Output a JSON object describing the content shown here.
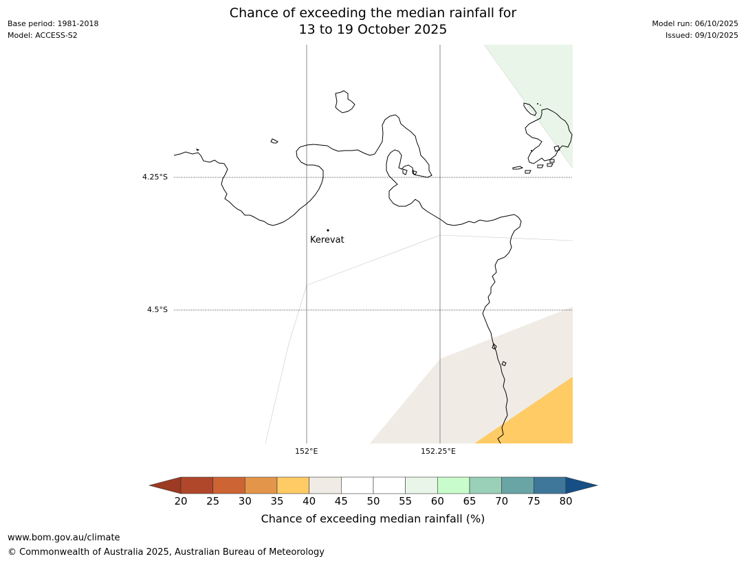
{
  "title": {
    "line1": "Chance of exceeding the median rainfall for",
    "line2": "13 to 19 October 2025"
  },
  "meta_left": {
    "base_period": "Base period: 1981-2018",
    "model": "Model: ACCESS-S2"
  },
  "meta_right": {
    "model_run": "Model run: 06/10/2025",
    "issued": "Issued: 09/10/2025"
  },
  "map": {
    "lat_labels": [
      "4.25°S",
      "4.5°S"
    ],
    "lon_labels": [
      "152°E",
      "152.25°E"
    ],
    "place": "Kerevat",
    "colors": {
      "coast": "#000000",
      "gridline": "#888888"
    }
  },
  "colorbar": {
    "label": "Chance of exceeding median rainfall (%)",
    "ticks": [
      "20",
      "25",
      "30",
      "35",
      "40",
      "45",
      "50",
      "55",
      "60",
      "65",
      "70",
      "75",
      "80"
    ],
    "under_color": "#9c3a22",
    "over_color": "#154f86",
    "colors": [
      "#b0472a",
      "#cd6434",
      "#e3964a",
      "#fecb65",
      "#f0ebe4",
      "#ffffff",
      "#ffffff",
      "#e9f5e8",
      "#c9fccc",
      "#9acfb8",
      "#6aa5a6",
      "#3e7799"
    ]
  },
  "footer": {
    "url": "www.bom.gov.au/climate",
    "copyright": "© Commonwealth of Australia 2025, Australian Bureau of Meteorology"
  }
}
